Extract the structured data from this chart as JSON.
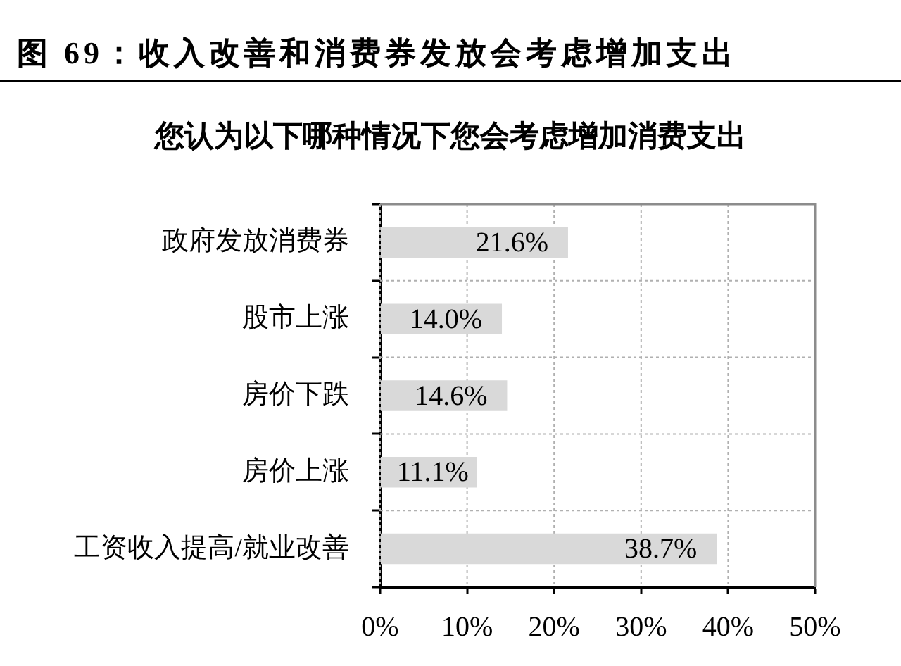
{
  "chart_data": {
    "type": "bar",
    "orientation": "horizontal",
    "title": "图 69：收入改善和消费券发放会考虑增加支出",
    "subtitle": "您认为以下哪种情况下您会考虑增加消费支出",
    "categories": [
      "政府发放消费券",
      "股市上涨",
      "房价下跌",
      "房价上涨",
      "工资收入提高/就业改善"
    ],
    "values": [
      21.6,
      14.0,
      14.6,
      11.1,
      38.7
    ],
    "value_labels": [
      "21.6%",
      "14.0%",
      "14.6%",
      "11.1%",
      "38.7%"
    ],
    "color": "#d9d9d9",
    "xlim": [
      0,
      50
    ],
    "xticks": [
      {
        "value": 0,
        "label": "0%"
      },
      {
        "value": 10,
        "label": "10%"
      },
      {
        "value": 20,
        "label": "20%"
      },
      {
        "value": 30,
        "label": "30%"
      },
      {
        "value": 40,
        "label": "40%"
      },
      {
        "value": 50,
        "label": "50%"
      }
    ],
    "grid": true,
    "legend": false
  }
}
